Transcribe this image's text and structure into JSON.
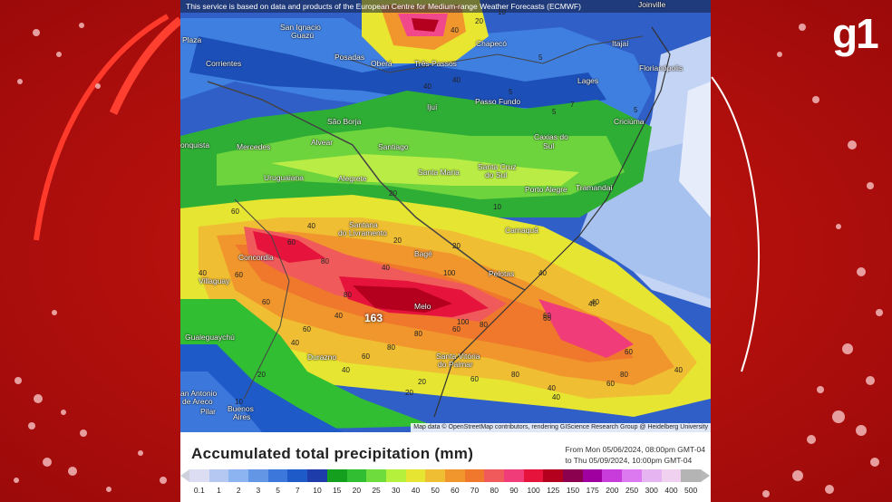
{
  "notice": "This service is based on data and products of the European Centre for Medium-range Weather Forecasts (ECMWF)",
  "attribution": "Map data © OpenStreetMap contributors, rendering GIScience Research Group @ Heidelberg University",
  "brand": "g1",
  "legend": {
    "title": "Accumulated total precipitation (mm)",
    "from": "From Mon 05/06/2024, 08:00pm GMT-04",
    "to": "to Thu 05/09/2024, 10:00pm GMT-04",
    "ticks": [
      "0.1",
      "1",
      "2",
      "3",
      "5",
      "7",
      "10",
      "15",
      "20",
      "25",
      "30",
      "40",
      "50",
      "60",
      "70",
      "80",
      "90",
      "100",
      "125",
      "150",
      "175",
      "200",
      "250",
      "300",
      "400",
      "500"
    ],
    "colors": [
      "#dcdcf2",
      "#b4c8f2",
      "#8cb4f0",
      "#6496e6",
      "#3c78dc",
      "#1e5ac8",
      "#1e3caa",
      "#14a01e",
      "#32be32",
      "#6edc3c",
      "#b4f03c",
      "#e6e632",
      "#f0be32",
      "#f0962d",
      "#f0782d",
      "#f05a5a",
      "#f03c78",
      "#e6143c",
      "#b4001e",
      "#8c0050",
      "#a000a0",
      "#c83cdc",
      "#dc78f0",
      "#e6b4f0",
      "#f0d2f0",
      "#b4b4b4"
    ]
  },
  "peak_value": "163",
  "cities": [
    {
      "id": "city-joinville",
      "name": "Joinville"
    },
    {
      "id": "city-san-ignacio",
      "name": "San Ignacio"
    },
    {
      "id": "city-guazu",
      "name": "Guazú"
    },
    {
      "id": "city-plaza",
      "name": "Plaza"
    },
    {
      "id": "city-chapeco",
      "name": "Chapecó"
    },
    {
      "id": "city-itajai",
      "name": "Itajaí"
    },
    {
      "id": "city-posadas",
      "name": "Posadas"
    },
    {
      "id": "city-obera",
      "name": "Oberá"
    },
    {
      "id": "city-tres-passos",
      "name": "Três Passos"
    },
    {
      "id": "city-florianopolis",
      "name": "Florianópolis"
    },
    {
      "id": "city-corrientes",
      "name": "Corrientes"
    },
    {
      "id": "city-lages",
      "name": "Lages"
    },
    {
      "id": "city-ijui",
      "name": "Ijuí"
    },
    {
      "id": "city-passo-fundo",
      "name": "Passo Fundo"
    },
    {
      "id": "city-sao-borja",
      "name": "São Borja"
    },
    {
      "id": "city-criciuma",
      "name": "Criciúma"
    },
    {
      "id": "city-caxias",
      "name": "Caxias do"
    },
    {
      "id": "city-caxias-2",
      "name": "Sul"
    },
    {
      "id": "city-conquista",
      "name": "onquista"
    },
    {
      "id": "city-mercedes",
      "name": "Mercedes"
    },
    {
      "id": "city-alvear",
      "name": "Alvear"
    },
    {
      "id": "city-santiago",
      "name": "Santiago"
    },
    {
      "id": "city-uruguaiana",
      "name": "Uruguaiana"
    },
    {
      "id": "city-santa-maria",
      "name": "Santa Maria"
    },
    {
      "id": "city-santa-cruz",
      "name": "Santa Cruz"
    },
    {
      "id": "city-santa-cruz-2",
      "name": "do Sul"
    },
    {
      "id": "city-alegrete",
      "name": "Alegrete"
    },
    {
      "id": "city-porto-alegre",
      "name": "Porto Alegre"
    },
    {
      "id": "city-tramandai",
      "name": "Tramandaí"
    },
    {
      "id": "city-santana",
      "name": "Santana"
    },
    {
      "id": "city-livramento",
      "name": "do Livramento"
    },
    {
      "id": "city-camaqua",
      "name": "Camaquã"
    },
    {
      "id": "city-concordia",
      "name": "Concordia"
    },
    {
      "id": "city-bage",
      "name": "Bagé"
    },
    {
      "id": "city-pelotas",
      "name": "Pelotas"
    },
    {
      "id": "city-villaguay",
      "name": "Villaguay"
    },
    {
      "id": "city-melo",
      "name": "Melo"
    },
    {
      "id": "city-gualeguaychu",
      "name": "Gualeguaychú"
    },
    {
      "id": "city-durazno",
      "name": "Durazno"
    },
    {
      "id": "city-santa-vitoria",
      "name": "Santa Vitória"
    },
    {
      "id": "city-do-palmar",
      "name": "do Palmar"
    },
    {
      "id": "city-san-antonio",
      "name": "an Antonio"
    },
    {
      "id": "city-de-areco",
      "name": "de Areco"
    },
    {
      "id": "city-buenos-aires",
      "name": "Buenos"
    },
    {
      "id": "city-buenos-aires-2",
      "name": "Aires"
    },
    {
      "id": "city-pilar",
      "name": "Pilar"
    }
  ],
  "values": [
    "40",
    "20",
    "10",
    "40",
    "5",
    "5",
    "5",
    "40",
    "20",
    "10",
    "20",
    "5",
    "7",
    "40",
    "60",
    "60",
    "80",
    "40",
    "100",
    "20",
    "40",
    "80",
    "40",
    "60",
    "80",
    "60",
    "100",
    "40",
    "60",
    "80",
    "60",
    "40",
    "60",
    "40",
    "80",
    "60",
    "20",
    "20",
    "40",
    "10",
    "80",
    "60",
    "40",
    "40",
    "60",
    "80",
    "40",
    "60",
    "40",
    "20",
    "60"
  ]
}
